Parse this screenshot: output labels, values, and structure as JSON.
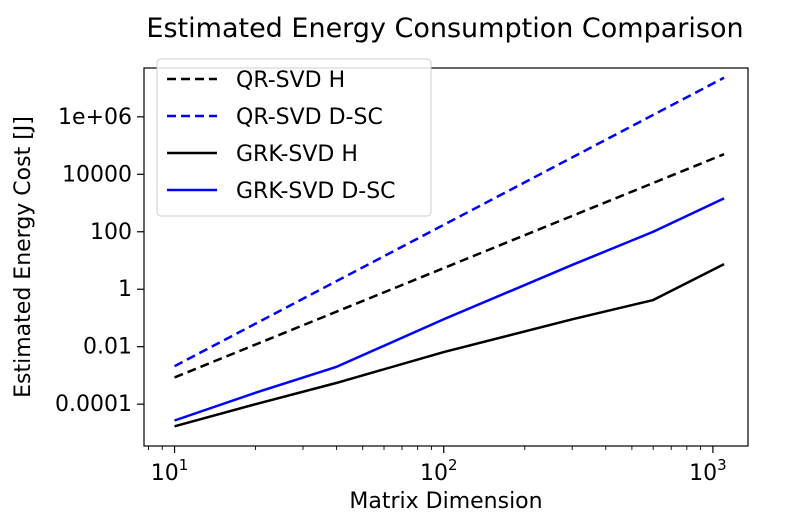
{
  "chart_data": {
    "type": "line",
    "title": "Estimated Energy Consumption Comparison",
    "xlabel": "Matrix Dimension",
    "ylabel": "Estimated Energy Cost [J]",
    "xscale": "log",
    "yscale": "log",
    "xlim": [
      7.7,
      1350
    ],
    "ylim": [
      3.5e-06,
      50000000
    ],
    "x": [
      10,
      1100
    ],
    "x_ticks": [
      {
        "value": 10,
        "base": "10",
        "exp": "1"
      },
      {
        "value": 100,
        "base": "10",
        "exp": "2"
      },
      {
        "value": 1000,
        "base": "10",
        "exp": "3"
      }
    ],
    "y_ticks": [
      {
        "value": 0.0001,
        "label": "0.0001"
      },
      {
        "value": 0.01,
        "label": "0.01"
      },
      {
        "value": 1,
        "label": "1"
      },
      {
        "value": 100,
        "label": "100"
      },
      {
        "value": 10000,
        "label": "10000"
      },
      {
        "value": 1000000,
        "label": "1e+06"
      }
    ],
    "legend_position": "top-left",
    "series": [
      {
        "name": "QR-SVD H",
        "color": "#000000",
        "dash": true,
        "points": [
          [
            10,
            0.00085
          ],
          [
            1100,
            50000
          ]
        ]
      },
      {
        "name": "QR-SVD D-SC",
        "color": "#0000ff",
        "dash": true,
        "points": [
          [
            10,
            0.0021
          ],
          [
            1100,
            23000000
          ]
        ]
      },
      {
        "name": "GRK-SVD H",
        "color": "#000000",
        "dash": false,
        "points": [
          [
            10,
            1.7e-05
          ],
          [
            20,
            0.0001
          ],
          [
            40,
            0.00055
          ],
          [
            100,
            0.0065
          ],
          [
            300,
            0.09
          ],
          [
            600,
            0.42
          ],
          [
            1100,
            7.5
          ]
        ]
      },
      {
        "name": "GRK-SVD D-SC",
        "color": "#0000ff",
        "dash": false,
        "points": [
          [
            10,
            2.7e-05
          ],
          [
            20,
            0.00025
          ],
          [
            40,
            0.002
          ],
          [
            100,
            0.09
          ],
          [
            300,
            7
          ],
          [
            600,
            100
          ],
          [
            1100,
            1450
          ]
        ]
      }
    ]
  }
}
